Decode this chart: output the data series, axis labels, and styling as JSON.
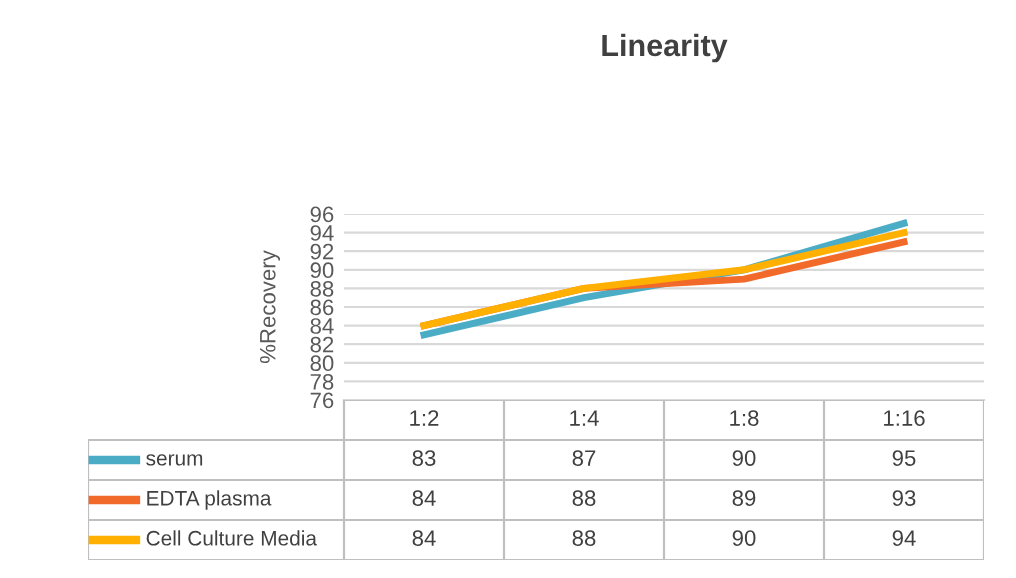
{
  "chart_data": {
    "type": "line",
    "title": "Linearity",
    "ylabel": "%Recovery",
    "categories": [
      "1:2",
      "1:4",
      "1:8",
      "1:16"
    ],
    "series": [
      {
        "name": "serum",
        "color": "#4bacc6",
        "values": [
          83,
          87,
          90,
          95
        ]
      },
      {
        "name": "EDTA plasma",
        "color": "#f26a2a",
        "values": [
          84,
          88,
          89,
          93
        ]
      },
      {
        "name": "Cell Culture Media",
        "color": "#ffb000",
        "values": [
          84,
          88,
          90,
          94
        ]
      }
    ],
    "ylim": [
      76,
      96
    ],
    "yticks": [
      76,
      78,
      80,
      82,
      84,
      86,
      88,
      90,
      92,
      94,
      96
    ],
    "grid": "y",
    "data_labels": true,
    "legend": "bottom",
    "marker": "none",
    "line_style": "solid"
  }
}
